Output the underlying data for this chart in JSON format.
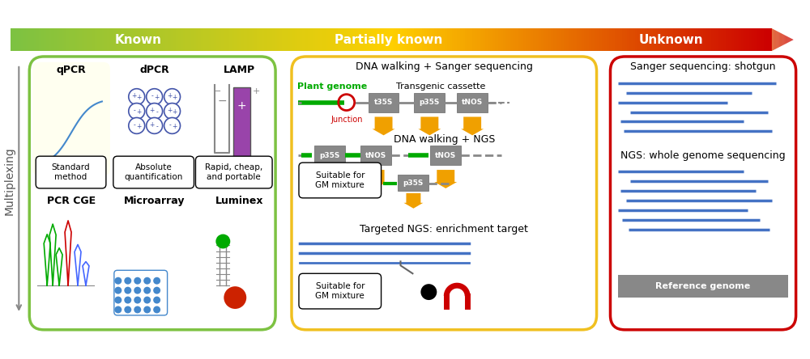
{
  "title_arrow": {
    "known_label": "Known",
    "partially_known_label": "Partially known",
    "unknown_label": "Unknown",
    "arrow_colors_start": "#7dc242",
    "arrow_colors_mid": "#f5e500",
    "arrow_colors_end": "#cc0000"
  },
  "multiplexing_label": "Multiplexing",
  "left_box": {
    "border_color": "#7dc242",
    "bg_color": "#ffffff",
    "title1": "qPCR",
    "title2": "dPCR",
    "title3": "LAMP",
    "label1": "Standard\nmethod",
    "label2": "Absolute\nquantification",
    "label3": "Rapid, cheap,\nand portable",
    "subtitle1": "PCR CGE",
    "subtitle2": "Microarray",
    "subtitle3": "Luminex",
    "qpcr_bg": "#fffff0"
  },
  "middle_box": {
    "border_color": "#f0c020",
    "bg_color": "#ffffff",
    "title1": "DNA walking + Sanger sequencing",
    "title2": "DNA walking + NGS",
    "title3": "Targeted NGS: enrichment target",
    "plant_label": "Plant genome",
    "transgenic_label": "Transgenic cassette",
    "junction_label": "Junction",
    "suitable_label": "Suitable for\nGM mixture"
  },
  "right_box": {
    "border_color": "#cc0000",
    "bg_color": "#ffffff",
    "title1": "Sanger sequencing: shotgun",
    "title2": "NGS: whole genome sequencing",
    "ref_genome_label": "Reference genome",
    "ref_genome_bg": "#888888"
  },
  "dna_line_color": "#4472c4",
  "gene_box_color": "#808080",
  "green_line_color": "#00aa00",
  "orange_arrow_color": "#f0a000",
  "red_circle_color": "#cc0000"
}
